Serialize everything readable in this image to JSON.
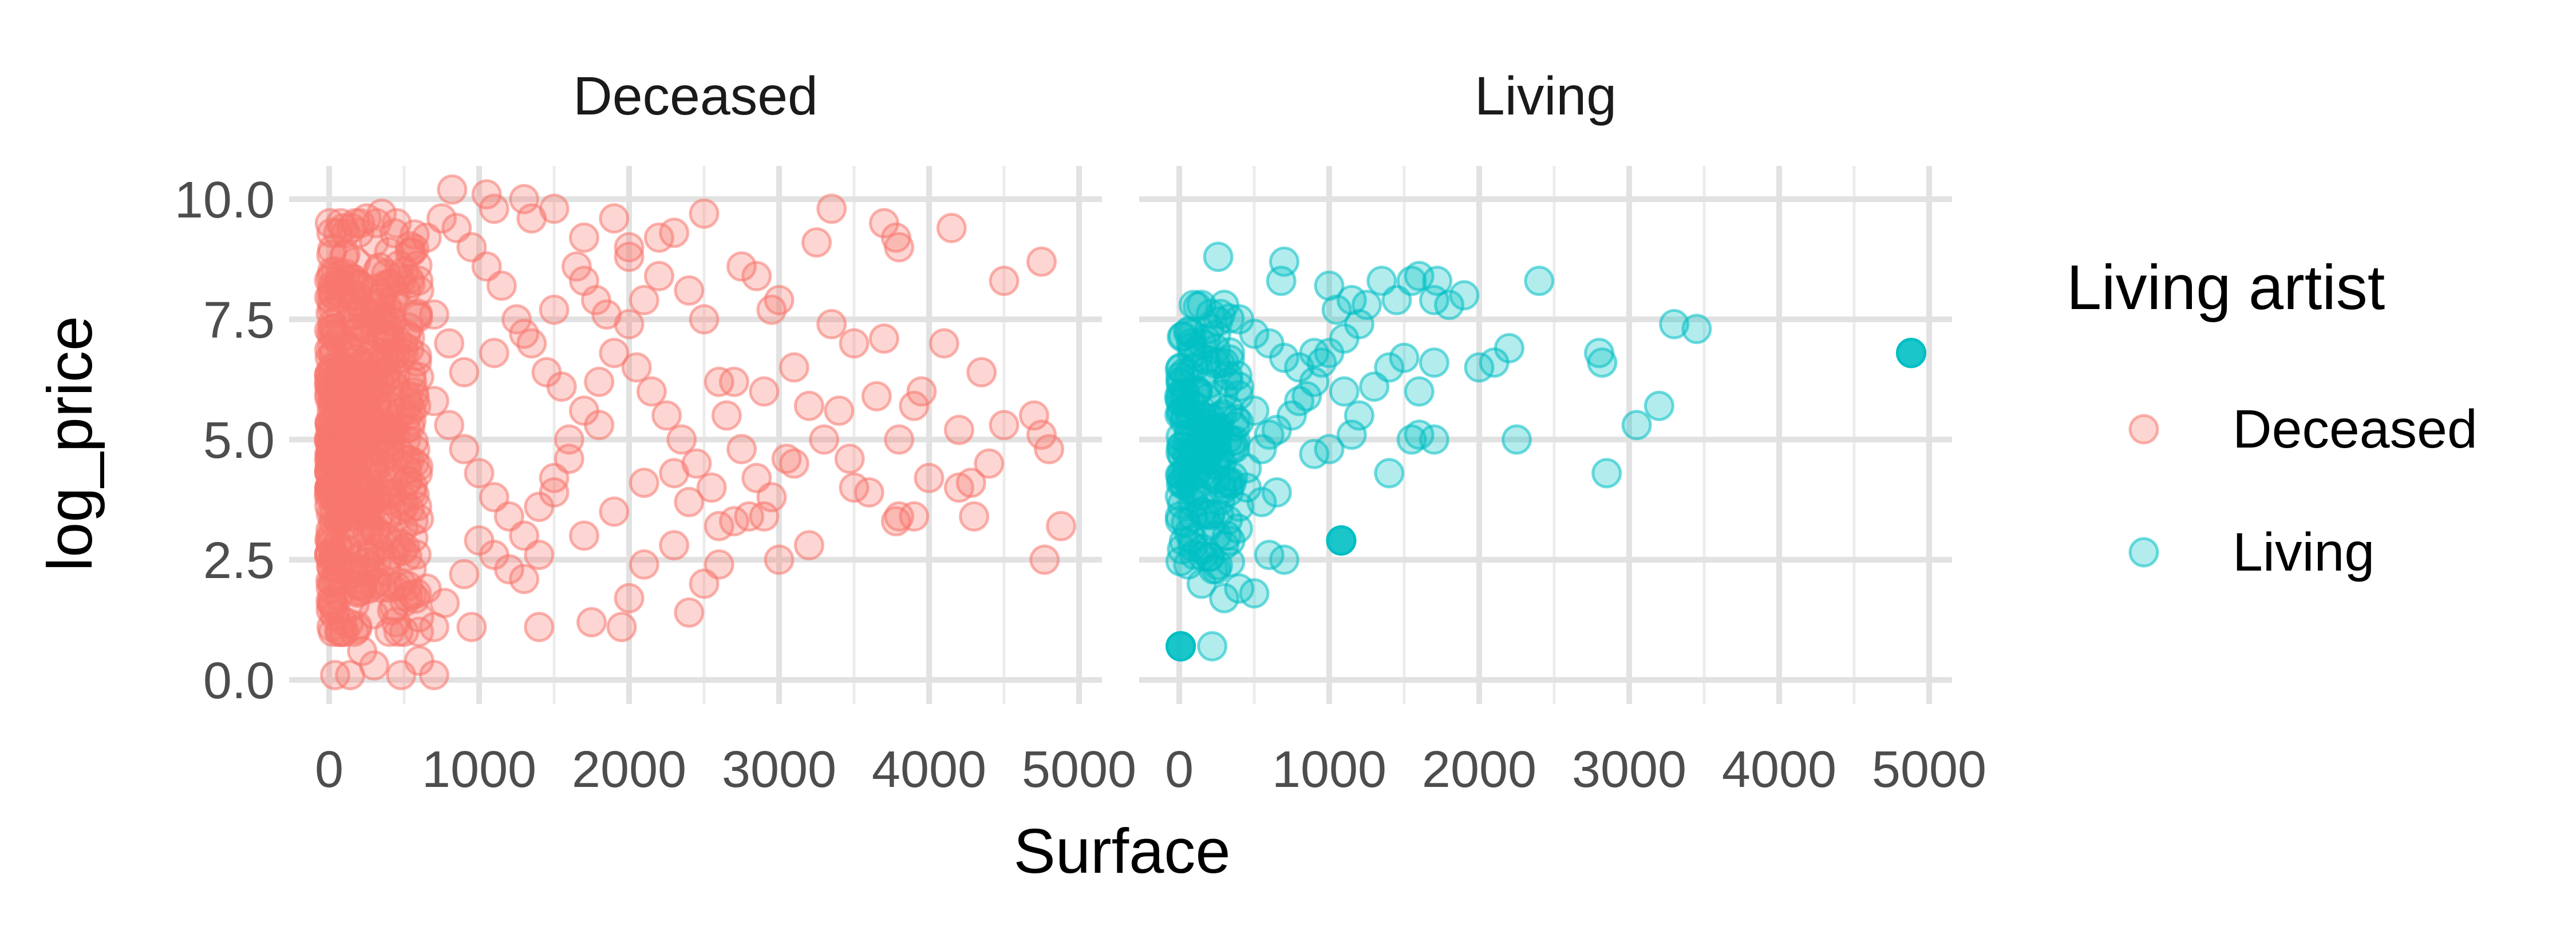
{
  "chart_data": {
    "type": "scatter",
    "facet_by": "Living artist",
    "xlabel": "Surface",
    "ylabel": "log_price",
    "xlim": [
      0,
      5000
    ],
    "ylim": [
      0,
      10
    ],
    "x_ticks": [
      "0",
      "1000",
      "2000",
      "3000",
      "4000",
      "5000"
    ],
    "y_ticks": [
      "0.0",
      "2.5",
      "5.0",
      "7.5",
      "10.0"
    ],
    "grid": true,
    "legend": {
      "title": "Living artist",
      "position": "right",
      "entries": [
        {
          "label": "Deceased",
          "color": "#F8766D"
        },
        {
          "label": "Living",
          "color": "#00BFC4"
        }
      ]
    },
    "panels": [
      {
        "title": "Deceased",
        "color": "#F8766D",
        "points": [
          [
            40,
            0.1
          ],
          [
            140,
            0.1
          ],
          [
            480,
            0.1
          ],
          [
            700,
            0.1
          ],
          [
            300,
            0.3
          ],
          [
            600,
            0.4
          ],
          [
            220,
            0.6
          ],
          [
            500,
            1.0
          ],
          [
            700,
            1.1
          ],
          [
            950,
            1.1
          ],
          [
            1400,
            1.1
          ],
          [
            1750,
            1.2
          ],
          [
            1950,
            1.1
          ],
          [
            2000,
            1.7
          ],
          [
            2400,
            1.4
          ],
          [
            2500,
            2.0
          ],
          [
            2100,
            2.4
          ],
          [
            2600,
            2.4
          ],
          [
            2300,
            2.8
          ],
          [
            2700,
            3.3
          ],
          [
            3000,
            2.5
          ],
          [
            2800,
            3.4
          ],
          [
            2900,
            3.4
          ],
          [
            3200,
            2.8
          ],
          [
            2400,
            3.7
          ],
          [
            2600,
            3.2
          ],
          [
            3100,
            4.5
          ],
          [
            3300,
            5.0
          ],
          [
            3500,
            4.0
          ],
          [
            3600,
            3.9
          ],
          [
            3800,
            3.4
          ],
          [
            3900,
            3.4
          ],
          [
            3470,
            4.6
          ],
          [
            3780,
            3.3
          ],
          [
            4000,
            4.2
          ],
          [
            4200,
            4.0
          ],
          [
            4280,
            4.1
          ],
          [
            4300,
            3.4
          ],
          [
            4400,
            4.5
          ],
          [
            4500,
            5.3
          ],
          [
            4700,
            5.5
          ],
          [
            4800,
            4.8
          ],
          [
            4750,
            5.1
          ],
          [
            4880,
            3.2
          ],
          [
            4770,
            2.5
          ],
          [
            4350,
            6.4
          ],
          [
            4200,
            5.2
          ],
          [
            4100,
            7.0
          ],
          [
            3950,
            6.0
          ],
          [
            3900,
            5.7
          ],
          [
            3800,
            5.0
          ],
          [
            3700,
            7.1
          ],
          [
            3650,
            5.9
          ],
          [
            3500,
            7.0
          ],
          [
            3400,
            5.6
          ],
          [
            3350,
            7.4
          ],
          [
            3200,
            5.7
          ],
          [
            3100,
            6.5
          ],
          [
            3000,
            7.9
          ],
          [
            2950,
            7.7
          ],
          [
            2900,
            6.0
          ],
          [
            2750,
            8.6
          ],
          [
            2700,
            6.2
          ],
          [
            2600,
            6.2
          ],
          [
            2500,
            7.5
          ],
          [
            2400,
            8.1
          ],
          [
            2300,
            9.3
          ],
          [
            2200,
            9.2
          ],
          [
            2000,
            9.0
          ],
          [
            2500,
            9.7
          ],
          [
            2850,
            8.4
          ],
          [
            3250,
            9.1
          ],
          [
            3350,
            9.8
          ],
          [
            3700,
            9.5
          ],
          [
            3780,
            9.2
          ],
          [
            3800,
            9.0
          ],
          [
            4150,
            9.4
          ],
          [
            4500,
            8.3
          ],
          [
            4750,
            8.7
          ],
          [
            1900,
            9.6
          ],
          [
            1700,
            9.2
          ],
          [
            1500,
            9.8
          ],
          [
            1350,
            9.6
          ],
          [
            1100,
            9.8
          ],
          [
            1050,
            10.1
          ],
          [
            820,
            10.2
          ],
          [
            1300,
            10.0
          ],
          [
            1650,
            8.6
          ],
          [
            1850,
            7.6
          ],
          [
            2050,
            6.5
          ],
          [
            2150,
            6.0
          ],
          [
            2250,
            5.5
          ],
          [
            2350,
            5.0
          ],
          [
            2450,
            4.5
          ],
          [
            2550,
            4.0
          ],
          [
            2650,
            5.5
          ],
          [
            2750,
            4.8
          ],
          [
            2850,
            4.2
          ],
          [
            2950,
            3.8
          ],
          [
            3050,
            4.6
          ],
          [
            1780,
            7.9
          ],
          [
            1800,
            5.3
          ],
          [
            1600,
            4.6
          ],
          [
            1500,
            3.9
          ],
          [
            1400,
            2.6
          ],
          [
            1300,
            2.1
          ],
          [
            1200,
            2.3
          ],
          [
            1100,
            2.6
          ],
          [
            1000,
            2.9
          ],
          [
            900,
            2.2
          ],
          [
            770,
            1.6
          ],
          [
            650,
            1.9
          ],
          [
            600,
            1.3
          ],
          [
            550,
            2.3
          ],
          [
            500,
            3.6
          ],
          [
            1700,
            3.0
          ],
          [
            1900,
            3.5
          ],
          [
            2100,
            4.1
          ],
          [
            2300,
            4.3
          ],
          [
            1550,
            6.1
          ],
          [
            1450,
            6.4
          ],
          [
            1350,
            7.0
          ],
          [
            1250,
            7.5
          ],
          [
            1150,
            8.2
          ],
          [
            1050,
            8.6
          ],
          [
            950,
            9.0
          ],
          [
            850,
            9.4
          ],
          [
            750,
            9.6
          ],
          [
            650,
            9.2
          ],
          [
            550,
            8.9
          ],
          [
            450,
            9.5
          ],
          [
            350,
            9.7
          ],
          [
            250,
            9.6
          ],
          [
            150,
            9.4
          ],
          [
            60,
            9.3
          ],
          [
            100,
            8.8
          ],
          [
            200,
            8.2
          ],
          [
            300,
            7.8
          ],
          [
            400,
            7.3
          ],
          [
            500,
            6.8
          ],
          [
            600,
            6.3
          ],
          [
            700,
            5.8
          ],
          [
            800,
            5.3
          ],
          [
            900,
            4.8
          ],
          [
            1000,
            4.3
          ],
          [
            1100,
            3.8
          ],
          [
            1200,
            3.4
          ],
          [
            1300,
            3.0
          ],
          [
            1400,
            3.6
          ],
          [
            1500,
            4.2
          ],
          [
            1600,
            5.0
          ],
          [
            1700,
            5.6
          ],
          [
            1800,
            6.2
          ],
          [
            1900,
            6.8
          ],
          [
            2000,
            7.4
          ],
          [
            2100,
            7.9
          ],
          [
            2200,
            8.4
          ],
          [
            2000,
            8.8
          ],
          [
            1700,
            8.3
          ],
          [
            1500,
            7.7
          ],
          [
            1300,
            7.2
          ],
          [
            1100,
            6.8
          ],
          [
            900,
            6.4
          ],
          [
            800,
            7.0
          ],
          [
            700,
            7.6
          ],
          [
            600,
            8.1
          ],
          [
            500,
            8.5
          ],
          [
            400,
            8.9
          ],
          [
            300,
            9.1
          ],
          [
            200,
            9.3
          ]
        ]
      },
      {
        "title": "Living",
        "color": "#00BFC4",
        "points": [
          [
            10,
            0.7
          ],
          [
            220,
            0.7
          ],
          [
            60,
            2.4
          ],
          [
            100,
            2.6
          ],
          [
            150,
            2.0
          ],
          [
            300,
            1.7
          ],
          [
            400,
            1.9
          ],
          [
            500,
            1.8
          ],
          [
            600,
            2.6
          ],
          [
            700,
            2.5
          ],
          [
            1080,
            2.9
          ],
          [
            300,
            2.8
          ],
          [
            250,
            3.0
          ],
          [
            200,
            3.2
          ],
          [
            150,
            3.5
          ],
          [
            400,
            3.6
          ],
          [
            450,
            4.0
          ],
          [
            550,
            3.7
          ],
          [
            650,
            3.9
          ],
          [
            900,
            4.7
          ],
          [
            1000,
            4.8
          ],
          [
            1150,
            5.1
          ],
          [
            1400,
            4.3
          ],
          [
            1550,
            5.0
          ],
          [
            1600,
            5.1
          ],
          [
            1700,
            5.0
          ],
          [
            2250,
            5.0
          ],
          [
            2850,
            4.3
          ],
          [
            3200,
            5.7
          ],
          [
            3050,
            5.3
          ],
          [
            1300,
            6.1
          ],
          [
            1400,
            6.5
          ],
          [
            1500,
            6.7
          ],
          [
            1600,
            6.0
          ],
          [
            1700,
            6.6
          ],
          [
            2000,
            6.5
          ],
          [
            2100,
            6.6
          ],
          [
            2200,
            6.9
          ],
          [
            2800,
            6.8
          ],
          [
            2820,
            6.6
          ],
          [
            3300,
            7.4
          ],
          [
            3450,
            7.3
          ],
          [
            4880,
            6.8
          ],
          [
            2400,
            8.3
          ],
          [
            1720,
            8.3
          ],
          [
            1600,
            8.4
          ],
          [
            1550,
            8.3
          ],
          [
            1450,
            7.9
          ],
          [
            1350,
            8.3
          ],
          [
            1250,
            7.8
          ],
          [
            1150,
            7.9
          ],
          [
            1050,
            7.7
          ],
          [
            1000,
            8.2
          ],
          [
            700,
            8.7
          ],
          [
            680,
            8.3
          ],
          [
            260,
            8.8
          ],
          [
            300,
            7.8
          ],
          [
            400,
            7.5
          ],
          [
            500,
            7.2
          ],
          [
            600,
            7.0
          ],
          [
            700,
            6.7
          ],
          [
            800,
            6.5
          ],
          [
            900,
            6.2
          ],
          [
            950,
            6.6
          ],
          [
            850,
            5.9
          ],
          [
            750,
            5.5
          ],
          [
            650,
            5.2
          ],
          [
            550,
            4.8
          ],
          [
            450,
            4.4
          ],
          [
            350,
            4.1
          ],
          [
            250,
            4.9
          ],
          [
            150,
            5.5
          ],
          [
            120,
            6.0
          ],
          [
            100,
            6.5
          ],
          [
            80,
            7.0
          ],
          [
            200,
            7.3
          ],
          [
            300,
            6.6
          ],
          [
            400,
            6.1
          ],
          [
            500,
            5.6
          ],
          [
            600,
            5.1
          ],
          [
            800,
            5.8
          ],
          [
            900,
            6.8
          ],
          [
            1100,
            6.0
          ],
          [
            1200,
            5.5
          ],
          [
            1700,
            7.9
          ],
          [
            1800,
            7.8
          ],
          [
            1900,
            8.0
          ],
          [
            1000,
            6.8
          ],
          [
            1100,
            7.1
          ],
          [
            1200,
            7.4
          ]
        ],
        "highlight": [
          [
            4880,
            6.8
          ],
          [
            1080,
            2.9
          ],
          [
            10,
            0.7
          ]
        ]
      }
    ]
  }
}
